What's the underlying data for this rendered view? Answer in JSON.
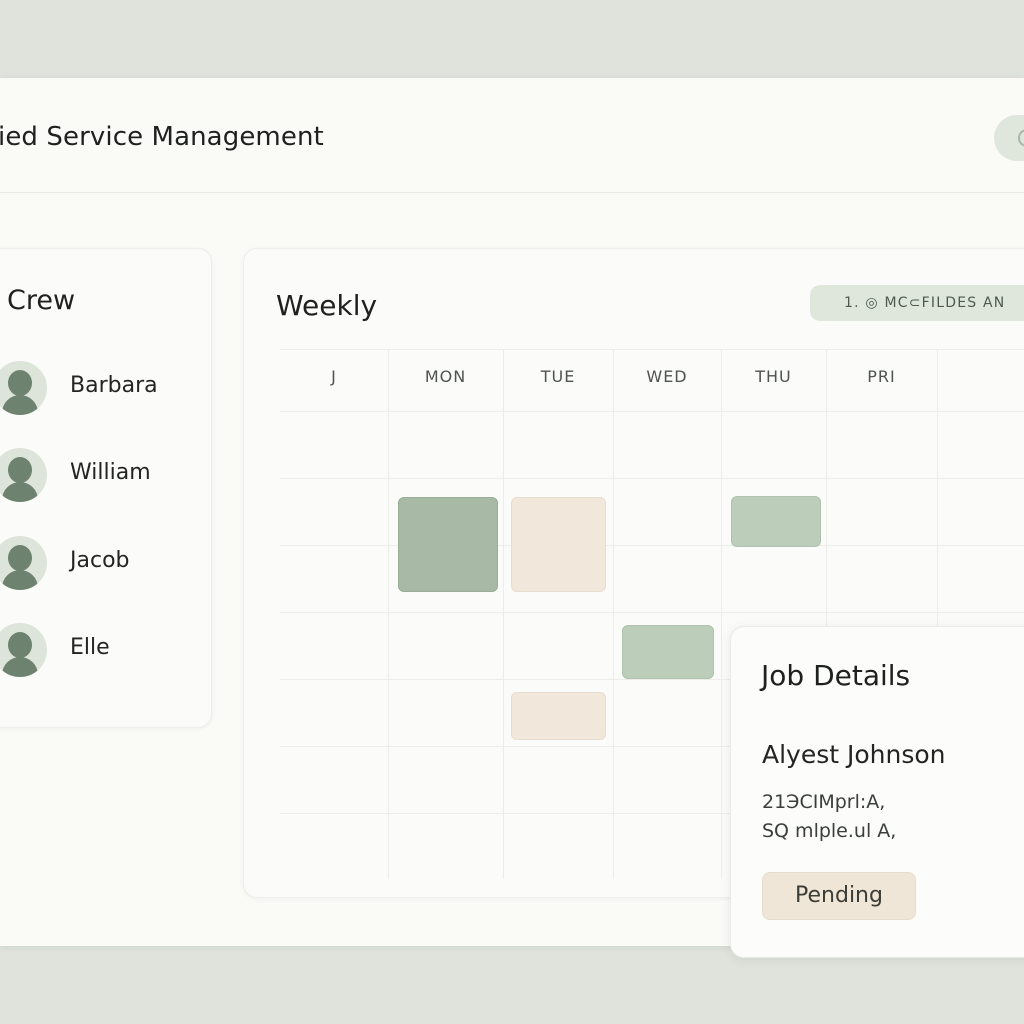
{
  "app": {
    "title": "ied Service Management"
  },
  "crew": {
    "title": "Crew",
    "members": [
      {
        "name": "Barbara"
      },
      {
        "name": "William"
      },
      {
        "name": "Jacob"
      },
      {
        "name": "Elle"
      }
    ]
  },
  "weekly": {
    "title": "Weekly",
    "badge": "1. ◎ MC⊂FILDES AN",
    "days": [
      "J",
      "MON",
      "TUE",
      "WED",
      "THU",
      "PRI"
    ]
  },
  "job_details": {
    "title": "Job Details",
    "customer_name": "Alyest Johnson",
    "line1": "21ЭCIMprl:A,",
    "line2": "SQ mlple.ul A,",
    "status": "Pending"
  },
  "colors": {
    "background": "#dfe3dc",
    "panel": "#fbfbf9",
    "green_block": "#a8baa5",
    "light_green_block": "#bccdba",
    "beige_block": "#f1e7da",
    "avatar_fill": "#6e8270"
  }
}
